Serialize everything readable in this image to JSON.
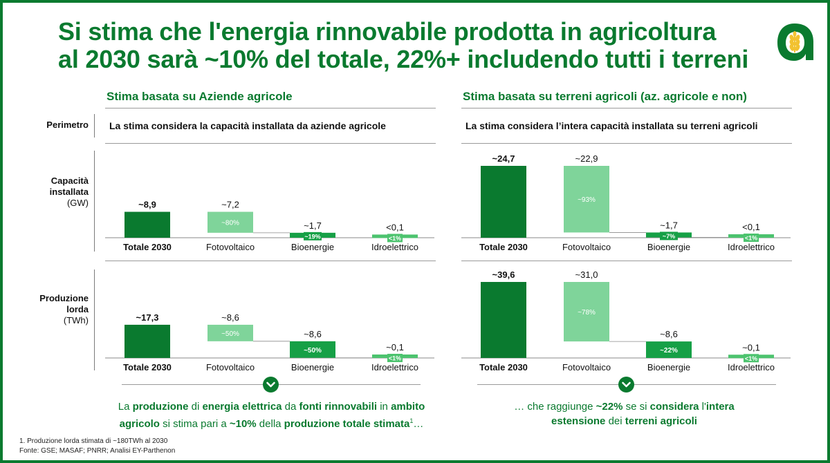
{
  "title": {
    "line1": "Si stima che l'energia rinnovabile prodotta in agricoltura",
    "line2": "al 2030 sarà ~10% del totale, 22%+ includendo tutti i terreni"
  },
  "brand": {
    "logo_letter": "a",
    "green": "#0a7a2f",
    "dark_bar": "#0a7a2f",
    "light_bar": "#7fd49a",
    "mid_bar": "#16a046",
    "badge": "#4cc36e"
  },
  "sections": {
    "left_title": "Stima basata su Aziende agricole",
    "right_title": "Stima basata su terreni agricoli (az. agricole e non)"
  },
  "row_labels": {
    "perimetro": "Perimetro",
    "capacita_l1": "Capacità",
    "capacita_l2": "installata",
    "capacita_unit": "(GW)",
    "produzione_l1": "Produzione",
    "produzione_l2": "lorda",
    "produzione_unit": "(TWh)"
  },
  "perimetro": {
    "left": "La stima considera la capacità installata da aziende agricole",
    "right": "La stima considera l’intera capacità installata su terreni agricoli"
  },
  "chart_data": [
    {
      "type": "bar",
      "subtype": "waterfall",
      "panel": "Stima basata su Aziende agricole — Capacità installata (GW)",
      "categories": [
        "Totale 2030",
        "Fotovoltaico",
        "Bioenergie",
        "Idroelettrico"
      ],
      "values": [
        8.9,
        7.2,
        1.7,
        0.1
      ],
      "value_labels": [
        "~8,9",
        "~7,2",
        "~1,7",
        "<0,1"
      ],
      "share_labels": [
        "",
        "~80%",
        "~19%",
        "<1%"
      ],
      "ylim": [
        0,
        24.7
      ]
    },
    {
      "type": "bar",
      "subtype": "waterfall",
      "panel": "Stima basata su terreni agricoli (az. agricole e non) — Capacità installata (GW)",
      "categories": [
        "Totale 2030",
        "Fotovoltaico",
        "Bioenergie",
        "Idroelettrico"
      ],
      "values": [
        24.7,
        22.9,
        1.7,
        0.1
      ],
      "value_labels": [
        "~24,7",
        "~22,9",
        "~1,7",
        "<0,1"
      ],
      "share_labels": [
        "",
        "~93%",
        "~7%",
        "<1%"
      ],
      "ylim": [
        0,
        24.7
      ]
    },
    {
      "type": "bar",
      "subtype": "waterfall",
      "panel": "Stima basata su Aziende agricole — Produzione lorda (TWh)",
      "categories": [
        "Totale 2030",
        "Fotovoltaico",
        "Bioenergie",
        "Idroelettrico"
      ],
      "values": [
        17.3,
        8.6,
        8.6,
        0.1
      ],
      "value_labels": [
        "~17,3",
        "~8,6",
        "~8,6",
        "~0,1"
      ],
      "share_labels": [
        "",
        "~50%",
        "~50%",
        "<1%"
      ],
      "ylim": [
        0,
        39.6
      ]
    },
    {
      "type": "bar",
      "subtype": "waterfall",
      "panel": "Stima basata su terreni agricoli (az. agricole e non) — Produzione lorda (TWh)",
      "categories": [
        "Totale 2030",
        "Fotovoltaico",
        "Bioenergie",
        "Idroelettrico"
      ],
      "values": [
        39.6,
        31.0,
        8.6,
        0.1
      ],
      "value_labels": [
        "~39,6",
        "~31,0",
        "~8,6",
        "~0,1"
      ],
      "share_labels": [
        "",
        "~78%",
        "~22%",
        "<1%"
      ],
      "ylim": [
        0,
        39.6
      ]
    }
  ],
  "conclusions": {
    "left": {
      "p1": "La ",
      "b1": "produzione",
      "p2": " di ",
      "b2": "energia elettrica",
      "p3": " da ",
      "b3": "fonti rinnovabili",
      "p4": " in ",
      "b4": "ambito",
      "b5": "agricolo",
      "p5": " si stima pari a ",
      "b6": "~10%",
      "p6": " della ",
      "b7": "produzione totale stimata",
      "sup": "1",
      "p7": "…"
    },
    "right": {
      "p1": "… che raggiunge ",
      "b1": "~22%",
      "p2": " se si ",
      "b2": "considera",
      "p3": " l'",
      "b3": "intera",
      "b4": "estensione",
      "p4": " dei ",
      "b5": "terreni agricoli"
    }
  },
  "footnotes": {
    "note1": "1.  Produzione lorda stimata di ~180TWh al 2030",
    "source": "Fonte: GSE; MASAF; PNRR; Analisi EY-Parthenon"
  },
  "icons": {
    "chevron": "chevron-down-icon",
    "logo": "wheat-logo-icon"
  }
}
